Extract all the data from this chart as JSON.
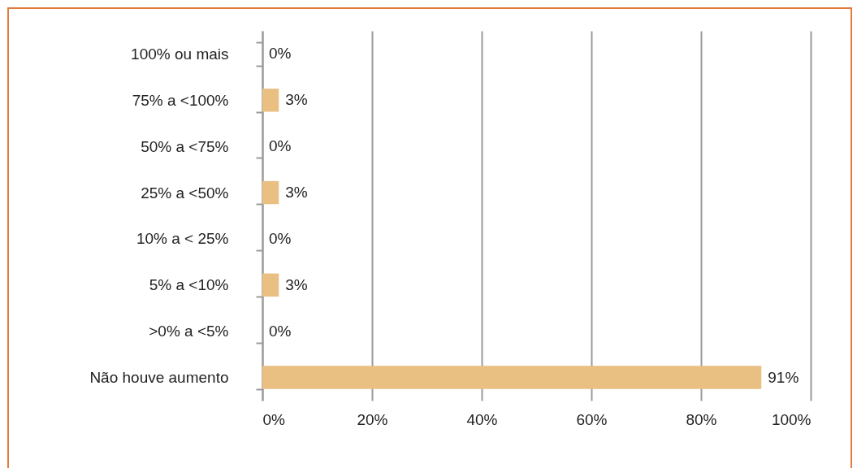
{
  "chart_data": {
    "type": "bar",
    "orientation": "horizontal",
    "categories": [
      "100% ou mais",
      "75% a <100%",
      "50% a <75%",
      "25% a <50%",
      "10% a < 25%",
      "5% a <10%",
      ">0% a <5%",
      "Não houve aumento"
    ],
    "values": [
      0,
      3,
      0,
      3,
      0,
      3,
      0,
      91
    ],
    "value_labels": [
      "0%",
      "3%",
      "0%",
      "3%",
      "0%",
      "3%",
      "0%",
      "91%"
    ],
    "color": "#e9bf82",
    "xlim": [
      0,
      100
    ],
    "xticks": [
      {
        "value": 0,
        "label": "0%"
      },
      {
        "value": 20,
        "label": "20%"
      },
      {
        "value": 40,
        "label": "40%"
      },
      {
        "value": 60,
        "label": "60%"
      },
      {
        "value": 80,
        "label": "80%"
      },
      {
        "value": 100,
        "label": "100%"
      }
    ],
    "grid": "x"
  }
}
